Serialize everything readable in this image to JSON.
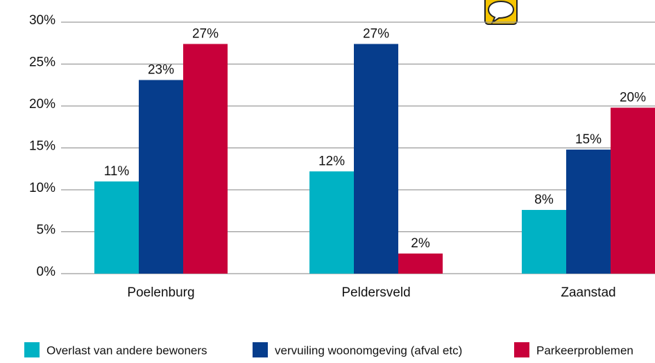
{
  "chart_data": {
    "type": "bar",
    "categories": [
      "Poelenburg",
      "Peldersveld",
      "Zaanstad"
    ],
    "series": [
      {
        "name": "Overlast van andere bewoners",
        "color": "#00b2c4",
        "values": [
          11.0,
          12.2,
          7.6
        ],
        "value_labels": [
          "11%",
          "12%",
          "8%"
        ]
      },
      {
        "name": "vervuiling woonomgeving (afval etc)",
        "color": "#063d8c",
        "values": [
          23.1,
          27.4,
          14.8
        ],
        "value_labels": [
          "23%",
          "27%",
          "15%"
        ]
      },
      {
        "name": "Parkeerproblemen",
        "color": "#c8003a",
        "values": [
          27.4,
          2.4,
          19.8
        ],
        "value_labels": [
          "27%",
          "2%",
          "20%"
        ]
      }
    ],
    "ylim": [
      0,
      30
    ],
    "yticks": [
      {
        "value": 0,
        "label": "0%"
      },
      {
        "value": 5,
        "label": "5%"
      },
      {
        "value": 10,
        "label": "10%"
      },
      {
        "value": 15,
        "label": "15%"
      },
      {
        "value": 20,
        "label": "20%"
      },
      {
        "value": 25,
        "label": "25%"
      },
      {
        "value": 30,
        "label": "30%"
      }
    ],
    "grid": true
  }
}
